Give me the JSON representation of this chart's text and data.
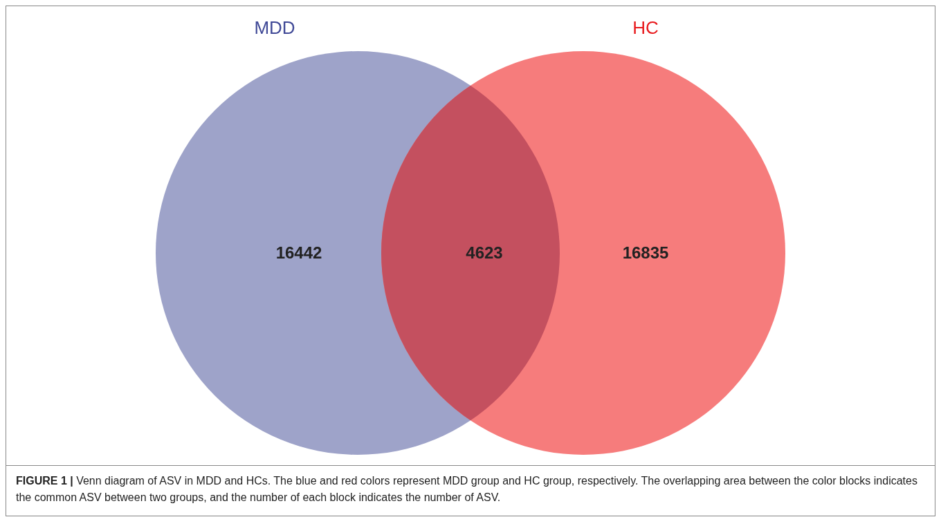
{
  "chart_data": {
    "type": "other",
    "categories": [
      null,
      null,
      null
    ],
    "values": [
      16442,
      4623,
      16835
    ],
    "colors": [
      "#9ea3c9",
      "#c4505f",
      "#f67c7c"
    ],
    "data_labels": true,
    "annotations": [
      "MDD",
      "HC",
      "FIGURE 1 | Venn diagram of ASV in MDD and HCs. The blue and red colors represent MDD group and HC group, respectively. The overlapping area between the color blocks indicates the common ASV between two groups, and the number of each block indicates the number of ASV."
    ]
  }
}
